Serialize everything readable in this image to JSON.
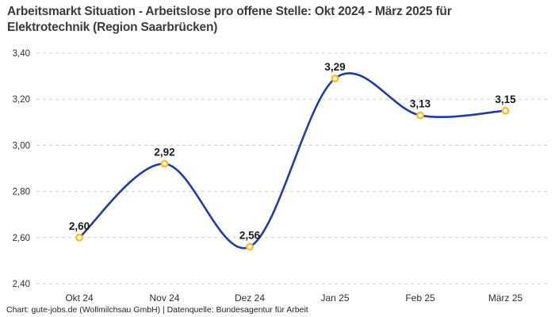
{
  "header": {
    "title": "Arbeitsmarkt Situation - Arbeitslose pro offene Stelle: Okt 2024 - März 2025 für Elektrotechnik (Region Saarbrücken)",
    "title_lines": [
      "Arbeitsmarkt Situation - Arbeitslose pro offene Stelle: Okt 2024 - März 2025 für",
      "Elektrotechnik (Region Saarbrücken)"
    ]
  },
  "footer": {
    "text": "Chart: gute-jobs.de (Wollmilchsau GmbH) | Datenquelle: Bundesagentur für Arbeit"
  },
  "chart_data": {
    "type": "line",
    "title": "Arbeitsmarkt Situation - Arbeitslose pro offene Stelle: Okt 2024 - März 2025 für Elektrotechnik (Region Saarbrücken)",
    "categories": [
      "Okt 24",
      "Nov 24",
      "Dez 24",
      "Jan 25",
      "Feb 25",
      "März 25"
    ],
    "values": [
      2.6,
      2.92,
      2.56,
      3.29,
      3.13,
      3.15
    ],
    "value_labels": [
      "2,60",
      "2,92",
      "2,56",
      "3,29",
      "3,13",
      "3,15"
    ],
    "xlabel": "",
    "ylabel": "",
    "ylim": [
      2.4,
      3.4
    ],
    "yticks": [
      2.4,
      2.6,
      2.8,
      3.0,
      3.2,
      3.4
    ],
    "ytick_labels": [
      "2,40",
      "2,60",
      "2,80",
      "3,00",
      "3,20",
      "3,40"
    ],
    "grid": "horizontal-dashed",
    "legend": "none",
    "smooth": true,
    "colors": {
      "line": "#203da0",
      "marker_ring": "#fbbc1f",
      "marker_fill": "#ffffff",
      "grid_line": "#cccccc",
      "tick_text": "#2e2e2e",
      "point_label_text": "#1a1a1a"
    }
  }
}
